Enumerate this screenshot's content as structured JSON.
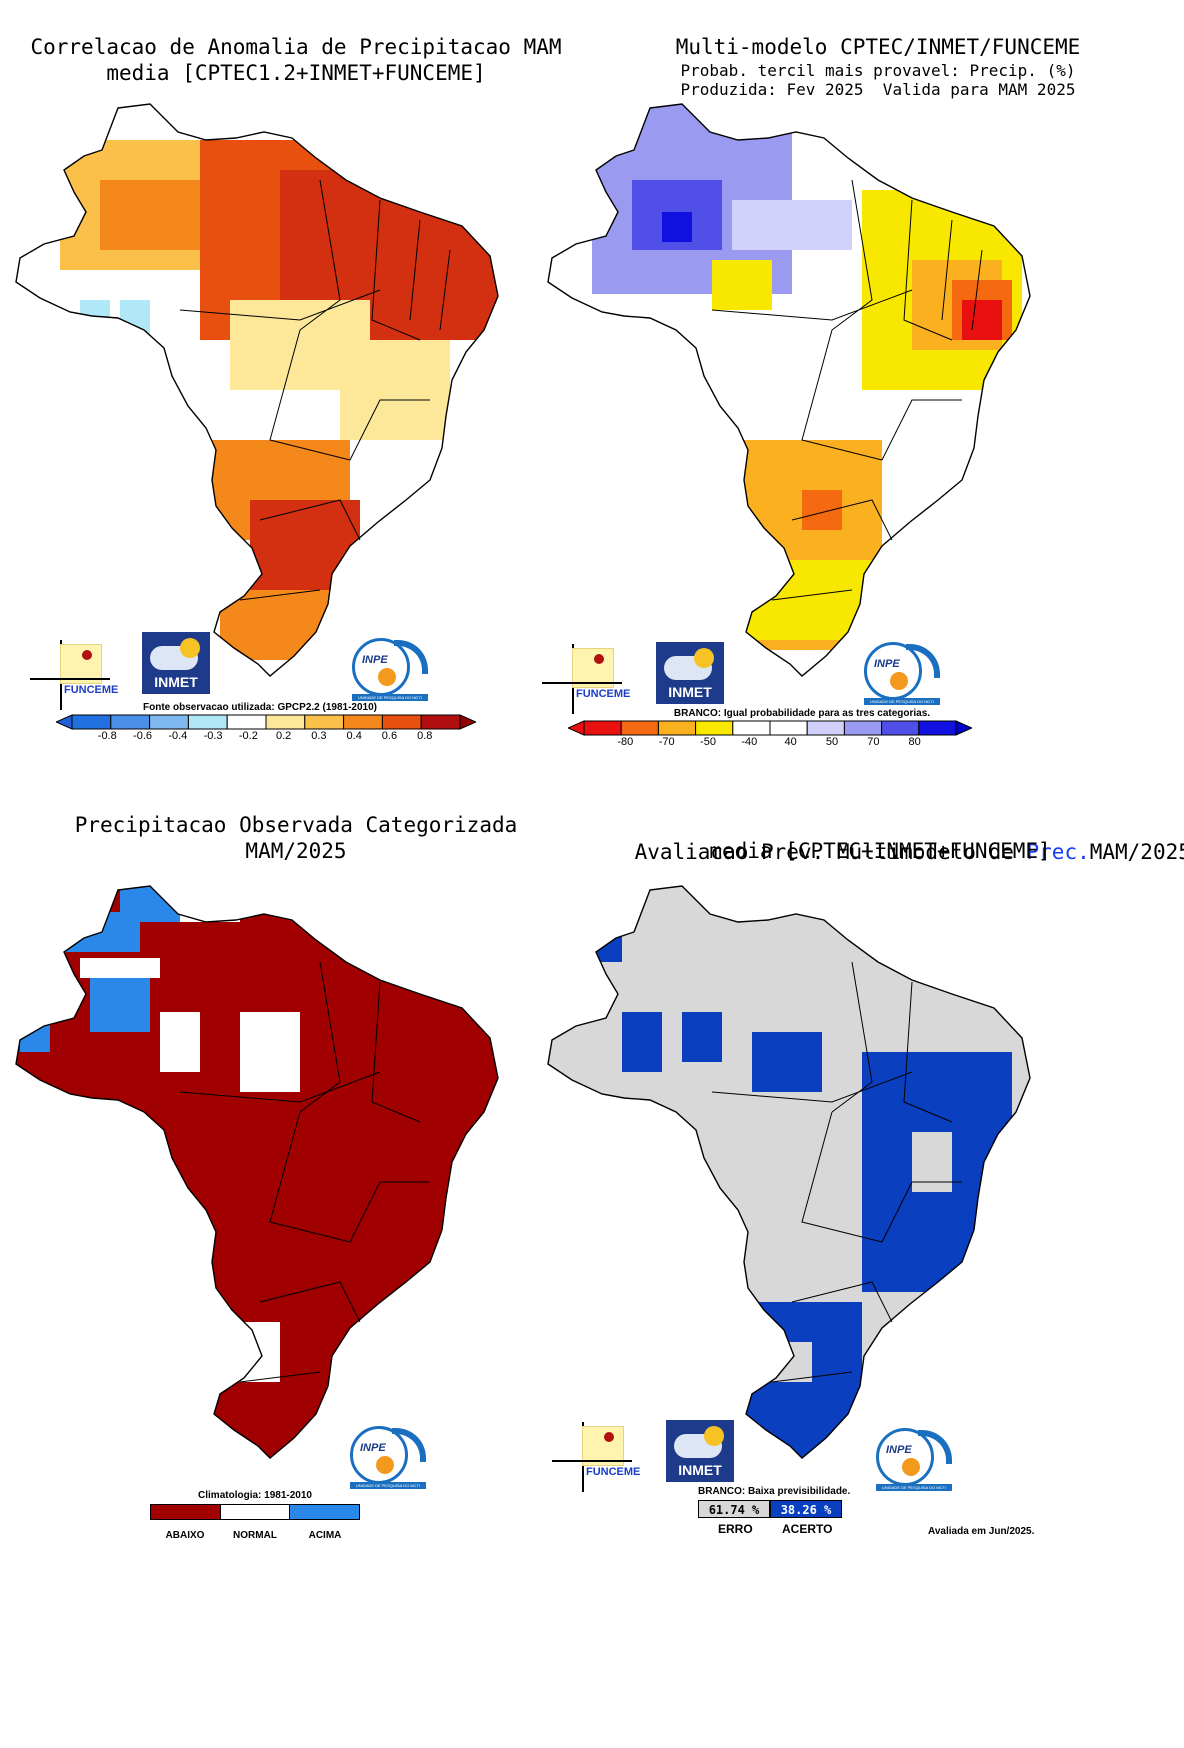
{
  "panels": {
    "correlation": {
      "title_line1": "Correlacao de Anomalia de Precipitacao MAM",
      "title_line2": "media [CPTEC1.2+INMET+FUNCEME]",
      "source_note": "Fonte observacao utilizada: GPCP2.2 (1981-2010)",
      "colorbar_colors": [
        "#2070e0",
        "#4a8fe8",
        "#80b8f0",
        "#b0e8f8",
        "#ffffff",
        "#fde89a",
        "#fbc04a",
        "#f5881a",
        "#e85010",
        "#b01010"
      ],
      "colorbar_ticks": [
        "-0.8",
        "-0.6",
        "-0.4",
        "-0.3",
        "-0.2",
        "0.2",
        "0.3",
        "0.4",
        "0.6",
        "0.8"
      ],
      "legend_arrows": {
        "left": "#2060d8",
        "right": "#900000"
      }
    },
    "forecast": {
      "title_line1": "Multi-modelo CPTEC/INMET/FUNCEME",
      "subtitle_line1": "Probab. tercil mais provavel: Precip. (%)",
      "subtitle_line2": "Produzida: Fev 2025  Valida para MAM 2025",
      "note": "BRANCO: Igual probabilidade para as tres categorias.",
      "colorbar_colors": [
        "#e81010",
        "#f56a10",
        "#fbb020",
        "#f8e800",
        "#ffffff",
        "#ffffff",
        "#d0d0fb",
        "#9a9af0",
        "#5050e8",
        "#1010e0"
      ],
      "colorbar_ticks": [
        "-80",
        "-70",
        "-50",
        "-40",
        "40",
        "50",
        "70",
        "80"
      ],
      "legend_arrows": {
        "left": "#e81010",
        "right": "#0000c8"
      }
    },
    "observed": {
      "title_line1": "Precipitacao Observada Categorizada",
      "title_line2": "MAM/2025",
      "note": "Climatologia: 1981-2010",
      "categories": [
        {
          "label": "ABAIXO",
          "color": "#a00000"
        },
        {
          "label": "NORMAL",
          "color": "#ffffff"
        },
        {
          "label": "ACIMA",
          "color": "#2a88e8"
        }
      ]
    },
    "evaluation": {
      "title_prefix": "Avaliacao Prev. Multimodelo de ",
      "title_highlight": "Prec.",
      "title_suffix": "MAM/2025",
      "title_line2": "media [CPTEC+INMET+FUNCEME]",
      "note": "BRANCO: Baixa previsibilidade.",
      "erro_value": "61.74 %",
      "acerto_value": "38.26 %",
      "erro_label": "ERRO",
      "acerto_label": "ACERTO",
      "erro_color": "#d8d8d8",
      "acerto_color": "#0a3fc0",
      "evaluated": "Avaliada em Jun/2025."
    }
  },
  "logos": {
    "funceme": "FUNCEME",
    "inmet": "INMET",
    "inpe": "INPE",
    "inpe_bar": "UNIDADE DE PESQUISA DO MCTI"
  }
}
